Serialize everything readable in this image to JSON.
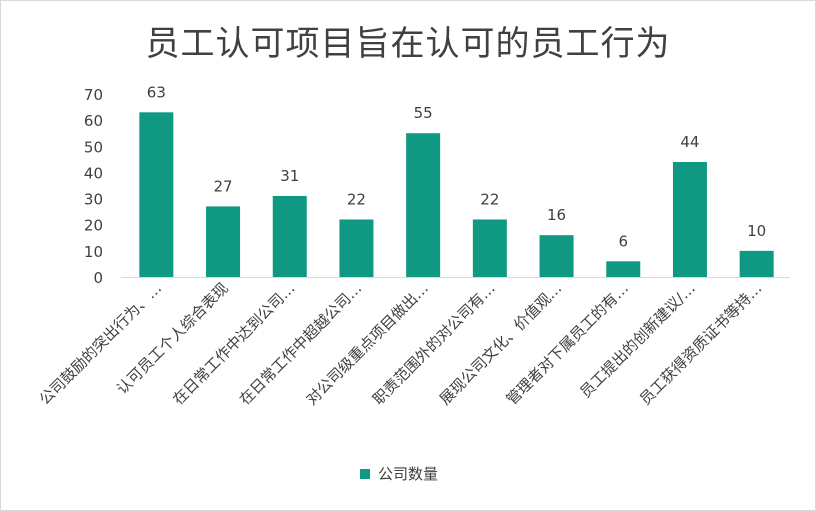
{
  "chart_data": {
    "type": "bar",
    "title": "员工认可项目旨在认可的员工行为",
    "categories": [
      "公司鼓励的突出行为、…",
      "认可员工个人综合表现",
      "在日常工作中达到公司…",
      "在日常工作中超越公司…",
      "对公司级重点项目做出…",
      "职责范围外的对公司有…",
      "展现公司文化、价值观…",
      "管理者对下属员工的有…",
      "员工提出的创新建议/…",
      "员工获得资质证书等持…"
    ],
    "series": [
      {
        "name": "公司数量",
        "values": [
          63,
          27,
          31,
          22,
          55,
          22,
          16,
          6,
          44,
          10
        ]
      }
    ],
    "ylim": [
      0,
      70
    ],
    "yticks": [
      0,
      10,
      20,
      30,
      40,
      50,
      60,
      70
    ],
    "grid": false,
    "legend_position": "bottom",
    "bar_color": "#0f9982",
    "axis_color": "#d9d9d9",
    "text_color": "#404040"
  }
}
